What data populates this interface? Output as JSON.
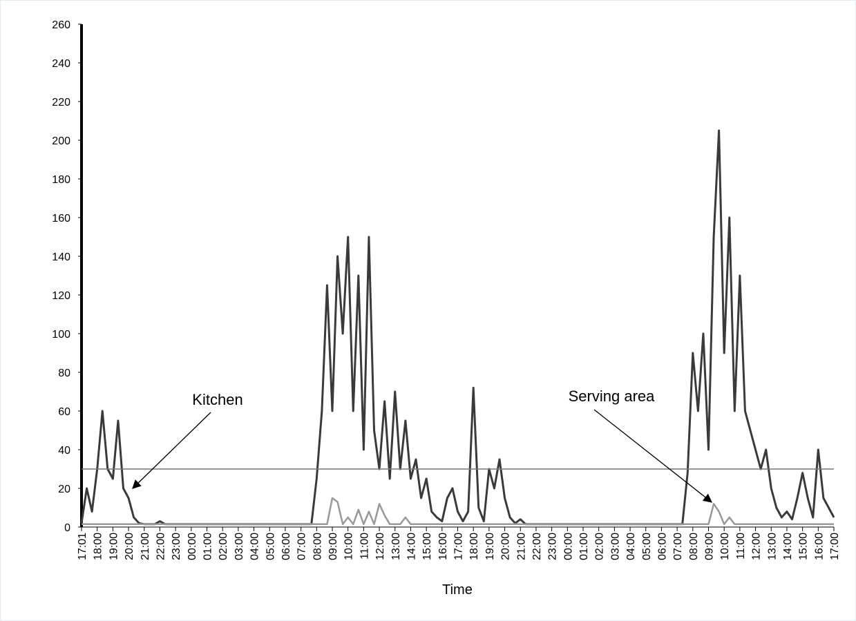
{
  "chart_data": {
    "type": "line",
    "xlabel": "Time",
    "categories": [
      "17:01",
      null,
      null,
      "18:00",
      null,
      null,
      "19:00",
      null,
      null,
      "20:00",
      null,
      null,
      "21:00",
      null,
      null,
      "22:00",
      null,
      null,
      "23:00",
      null,
      null,
      "00:00",
      null,
      null,
      "01:00",
      null,
      null,
      "02:00",
      null,
      null,
      "03:00",
      null,
      null,
      "04:00",
      null,
      null,
      "05:00",
      null,
      null,
      "06:00",
      null,
      null,
      "07:00",
      null,
      null,
      "08:00",
      null,
      null,
      "09:00",
      null,
      null,
      "10:00",
      null,
      null,
      "11:00",
      null,
      null,
      "12:00",
      null,
      null,
      "13:00",
      null,
      null,
      "14:00",
      null,
      null,
      "15:00",
      null,
      null,
      "16:00",
      null,
      null,
      "17:00",
      null,
      null,
      "18:00",
      null,
      null,
      "19:00",
      null,
      null,
      "20:00",
      null,
      null,
      "21:00",
      null,
      null,
      "22:00",
      null,
      null,
      "23:00",
      null,
      null,
      "00:00",
      null,
      null,
      "01:00",
      null,
      null,
      "02:00",
      null,
      null,
      "03:00",
      null,
      null,
      "04:00",
      null,
      null,
      "05:00",
      null,
      null,
      "06:00",
      null,
      null,
      "07:00",
      null,
      null,
      "08:00",
      null,
      null,
      "09:00",
      null,
      null,
      "10:00",
      null,
      null,
      "11:00",
      null,
      null,
      "12:00",
      null,
      null,
      "13:00",
      null,
      null,
      "14:00",
      null,
      null,
      "15:00",
      null,
      null,
      "16:00",
      null,
      null,
      "17:00"
    ],
    "series": [
      {
        "color": "#3a3a3a",
        "values": [
          2,
          20,
          8,
          30,
          60,
          30,
          25,
          55,
          20,
          15,
          5,
          2,
          1.5,
          1.5,
          1.5,
          3,
          1.5,
          1.5,
          1.5,
          1.5,
          1.5,
          1.5,
          1.5,
          1.5,
          1.5,
          1.5,
          1.5,
          1.5,
          1.5,
          1.5,
          1.5,
          1.5,
          1.5,
          1.5,
          1.5,
          1.5,
          1.5,
          1.5,
          1.5,
          1.5,
          1.5,
          1.5,
          1.5,
          1.5,
          1.5,
          25,
          60,
          125,
          60,
          140,
          100,
          150,
          60,
          130,
          40,
          150,
          50,
          30,
          65,
          25,
          70,
          30,
          55,
          25,
          35,
          15,
          25,
          8,
          5,
          3,
          15,
          20,
          8,
          3,
          8,
          72,
          10,
          3,
          30,
          20,
          35,
          15,
          5,
          2,
          4,
          1.5,
          1.5,
          1.5,
          1.5,
          1.5,
          1.5,
          1.5,
          1.5,
          1.5,
          1.5,
          1.5,
          1.5,
          1.5,
          1.5,
          1.5,
          1.5,
          1.5,
          1.5,
          1.5,
          1.5,
          1.5,
          1.5,
          1.5,
          1.5,
          1.5,
          1.5,
          1.5,
          1.5,
          1.5,
          1.5,
          1.5,
          28,
          90,
          60,
          100,
          40,
          150,
          205,
          90,
          160,
          60,
          130,
          60,
          50,
          40,
          30,
          40,
          20,
          10,
          5,
          8,
          4,
          15,
          28,
          15,
          5,
          40,
          15,
          10,
          5
        ]
      },
      {
        "color": "#999999",
        "values": [
          1.5,
          1.5,
          1.5,
          1.5,
          1.5,
          1.5,
          1.5,
          1.5,
          1.5,
          1.5,
          1.5,
          1.5,
          1.5,
          1.5,
          1.5,
          1.5,
          1.5,
          1.5,
          1.5,
          1.5,
          1.5,
          1.5,
          1.5,
          1.5,
          1.5,
          1.5,
          1.5,
          1.5,
          1.5,
          1.5,
          1.5,
          1.5,
          1.5,
          1.5,
          1.5,
          1.5,
          1.5,
          1.5,
          1.5,
          1.5,
          1.5,
          1.5,
          1.5,
          1.5,
          1.5,
          1.5,
          1.5,
          1.5,
          15,
          13,
          1.5,
          5,
          1.5,
          9,
          1.5,
          8,
          1.5,
          12,
          6,
          1.5,
          1.5,
          1.5,
          5,
          1.5,
          1.5,
          1.5,
          1.5,
          1.5,
          1.5,
          1.5,
          1.5,
          1.5,
          1.5,
          1.5,
          1.5,
          1.5,
          1.5,
          1.5,
          1.5,
          1.5,
          1.5,
          1.5,
          1.5,
          1.5,
          1.5,
          1.5,
          1.5,
          1.5,
          1.5,
          1.5,
          1.5,
          1.5,
          1.5,
          1.5,
          1.5,
          1.5,
          1.5,
          1.5,
          1.5,
          1.5,
          1.5,
          1.5,
          1.5,
          1.5,
          1.5,
          1.5,
          1.5,
          1.5,
          1.5,
          1.5,
          1.5,
          1.5,
          1.5,
          1.5,
          1.5,
          1.5,
          1.5,
          1.5,
          1.5,
          1.5,
          1.5,
          12,
          8,
          1.5,
          5,
          1.5,
          1.5,
          1.5,
          1.5,
          1.5,
          1.5,
          1.5,
          1.5,
          1.5,
          1.5,
          1.5,
          1.5,
          1.5,
          1.5,
          1.5,
          1.5,
          1.5,
          1.5,
          1.5,
          1.5
        ]
      }
    ],
    "hline": 30,
    "hline_color": "#777777",
    "annotations": [
      "Kitchen",
      "Serving area"
    ],
    "ylim": [
      0,
      260
    ],
    "yticks": [
      0,
      20,
      40,
      60,
      80,
      100,
      120,
      140,
      160,
      180,
      200,
      220,
      240,
      260
    ],
    "grid": false
  }
}
